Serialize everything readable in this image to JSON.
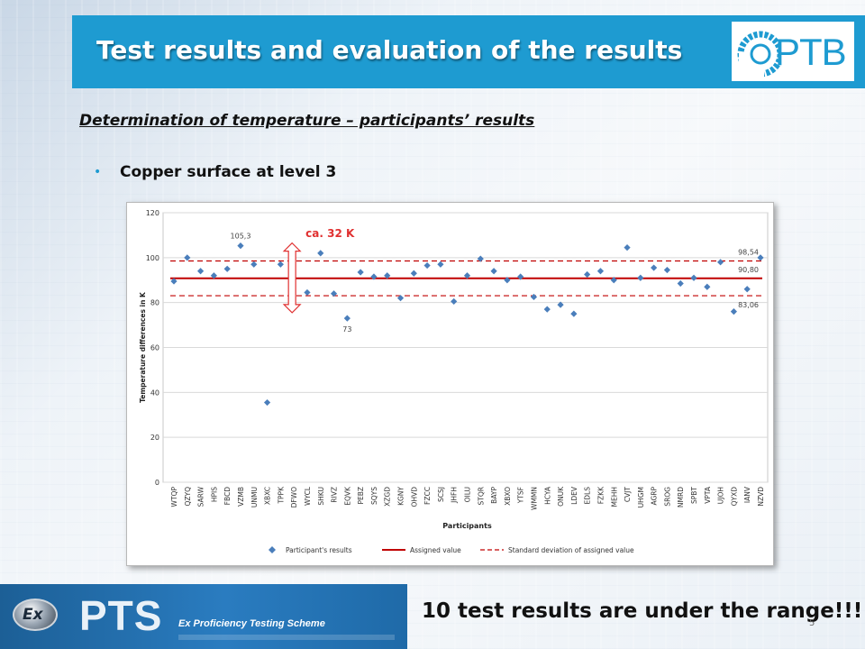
{
  "slide": {
    "title": "Test results and evaluation of the results",
    "logo": "PTB",
    "subtitle": "Determination of  temperature – participants’ results",
    "bullet": "Copper surface at level 3",
    "note": "10 test results are under the range!!!",
    "footer_logo_ex": "Ex",
    "footer_logo_pts": "PTS",
    "footer_logo_caption": "Ex Proficiency Testing Scheme",
    "page_number": "5"
  },
  "colors": {
    "header_blue": "#1e9bd1",
    "marker_blue": "#4a7ebb",
    "assigned_red": "#c00000",
    "annotation_red": "#e03030"
  },
  "chart_data": {
    "type": "scatter",
    "title": "",
    "xlabel": "Participants",
    "ylabel": "Temperature differences in K",
    "ylim": [
      0,
      120
    ],
    "yticks": [
      0,
      20,
      40,
      60,
      80,
      100,
      120
    ],
    "grid": true,
    "legend_placement": "bottom",
    "categories": [
      "WTQP",
      "QZYQ",
      "SARW",
      "HPIS",
      "FBCD",
      "VZMB",
      "UNMU",
      "XBXC",
      "TPPK",
      "DFWO",
      "WYCL",
      "SHKU",
      "RIVZ",
      "EQVK",
      "PEBZ",
      "SQYS",
      "XZGD",
      "KGNY",
      "OHVD",
      "FZCC",
      "SCSJ",
      "JHFH",
      "OILU",
      "STQR",
      "BAYP",
      "XBXO",
      "YTSF",
      "WMMN",
      "HCYA",
      "ONUK",
      "LDEV",
      "EDLS",
      "FZKK",
      "MEHH",
      "CVJT",
      "UHGM",
      "AGRP",
      "SROG",
      "NMRD",
      "SPBT",
      "VPTA",
      "UJOH",
      "QYXD",
      "IANV",
      "NZVD"
    ],
    "series": [
      {
        "name": "Participant's results",
        "values": [
          89.5,
          100,
          94,
          92,
          95,
          105.3,
          97,
          35.5,
          97,
          77.5,
          84.5,
          102,
          84,
          73,
          93.5,
          91.5,
          92,
          82,
          93,
          96.5,
          97,
          80.5,
          92,
          99.5,
          94,
          90,
          91.5,
          82.5,
          77,
          79,
          75,
          92.5,
          94,
          90,
          104.5,
          91,
          95.5,
          94.5,
          88.5,
          91,
          87,
          98,
          76,
          86,
          100
        ]
      },
      {
        "name": "Assigned value",
        "value": 90.8
      },
      {
        "name": "Standard deviation of assigned value",
        "upper": 98.54,
        "lower": 83.06
      }
    ],
    "annotations": [
      {
        "text": "105,3",
        "category": "VZMB",
        "value": 105.3
      },
      {
        "text": "73",
        "category": "EQVK",
        "value": 73
      },
      {
        "text": "98,54",
        "category": "NZVD",
        "value": 98.54
      },
      {
        "text": "90,80",
        "category": "NZVD",
        "value": 90.8
      },
      {
        "text": "83,06",
        "category": "NZVD",
        "value": 83.06
      },
      {
        "text": "ca. 32 K",
        "category": "DFWO",
        "value": 108
      }
    ],
    "range_arrow": {
      "category": "DFWO",
      "top": 106.5,
      "bottom": 75.5
    }
  }
}
